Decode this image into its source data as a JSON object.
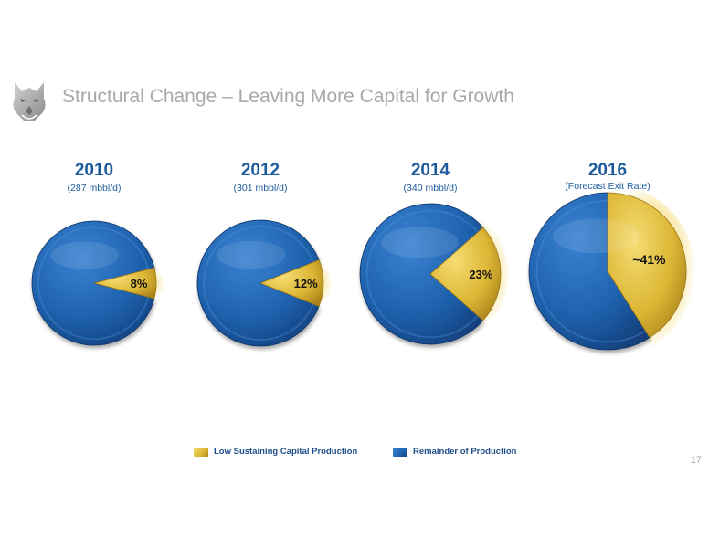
{
  "slide": {
    "title": "Structural Change – Leaving More Capital for Growth",
    "page_number": "17",
    "logo": "husky-head-logo"
  },
  "colors": {
    "low_sustaining": "#dcb634",
    "low_sustaining_dark": "#a8821a",
    "remainder": "#1f62ae",
    "remainder_dark": "#123f7c",
    "year_text": "#1e5b9c",
    "title_text": "#a8a8a8"
  },
  "chart_data": {
    "type": "pie",
    "series_names": [
      "Low Sustaining Capital Production",
      "Remainder of Production"
    ],
    "charts": [
      {
        "year": "2010",
        "subtitle": "(287 mbbl/d)",
        "low_sustaining_pct": 8,
        "label": "8%"
      },
      {
        "year": "2012",
        "subtitle": "(301 mbbl/d)",
        "low_sustaining_pct": 12,
        "label": "12%"
      },
      {
        "year": "2014",
        "subtitle": "(340 mbbl/d)",
        "low_sustaining_pct": 23,
        "label": "23%"
      },
      {
        "year": "2016",
        "subtitle": "(Forecast Exit Rate)",
        "low_sustaining_pct": 41,
        "label": "~41%"
      }
    ],
    "legend": [
      {
        "label": "Low Sustaining Capital Production",
        "color": "#dcb634"
      },
      {
        "label": "Remainder of Production",
        "color": "#1f62ae"
      }
    ],
    "legend_position": "bottom"
  }
}
